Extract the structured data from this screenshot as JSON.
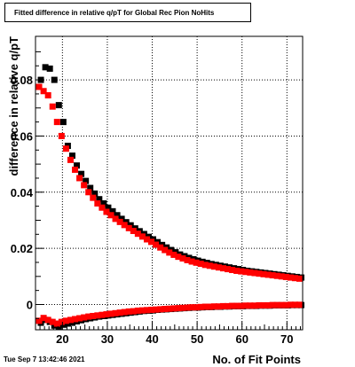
{
  "chart_data": {
    "type": "scatter",
    "title": "Fitted difference in relative q/pT for Global Rec Pion NoHits",
    "xlabel": "No. of Fit Points",
    "ylabel": "difference in relative q/pT",
    "xlim": [
      14,
      73.5
    ],
    "ylim": [
      -0.009,
      0.0955
    ],
    "x_ticks": [
      20,
      30,
      40,
      50,
      60,
      70
    ],
    "y_ticks": [
      0,
      0.02,
      0.04,
      0.06,
      0.08
    ],
    "x_tick_labels": [
      "20",
      "30",
      "40",
      "50",
      "60",
      "70"
    ],
    "y_tick_labels": [
      "0",
      "0.02",
      "0.04",
      "0.06",
      "0.08"
    ],
    "grid": true,
    "series": [
      {
        "color": "#000000",
        "role": "upper",
        "x": [
          15,
          16,
          17,
          18,
          19,
          20,
          21,
          22,
          23,
          24,
          25,
          26,
          27,
          28,
          29,
          30,
          31,
          32,
          33,
          34,
          35,
          36,
          37,
          38,
          39,
          40,
          41,
          42,
          43,
          44,
          45,
          46,
          47,
          48,
          49,
          50,
          51,
          52,
          53,
          54,
          55,
          56,
          57,
          58,
          59,
          60,
          61,
          62,
          63,
          64,
          65,
          66,
          67,
          68,
          69,
          70,
          71,
          72,
          73
        ],
        "y": [
          0.08,
          0.0845,
          0.084,
          0.08,
          0.071,
          0.065,
          0.0565,
          0.053,
          0.0495,
          0.0465,
          0.044,
          0.0415,
          0.0395,
          0.0375,
          0.036,
          0.0345,
          0.0332,
          0.0318,
          0.0305,
          0.0293,
          0.0282,
          0.0271,
          0.0261,
          0.0251,
          0.0241,
          0.0232,
          0.0222,
          0.0212,
          0.0203,
          0.0194,
          0.0186,
          0.0178,
          0.0172,
          0.0166,
          0.0161,
          0.0156,
          0.0152,
          0.0148,
          0.0144,
          0.0141,
          0.0138,
          0.0135,
          0.0132,
          0.0129,
          0.0126,
          0.0123,
          0.012,
          0.0118,
          0.0116,
          0.0114,
          0.0112,
          0.011,
          0.0108,
          0.0106,
          0.0104,
          0.0102,
          0.01,
          0.0098,
          0.0096
        ]
      },
      {
        "color": "#ff0000",
        "role": "upper",
        "x": [
          15,
          16,
          17,
          18,
          19,
          20,
          21,
          22,
          23,
          24,
          25,
          26,
          27,
          28,
          29,
          30,
          31,
          32,
          33,
          34,
          35,
          36,
          37,
          38,
          39,
          40,
          41,
          42,
          43,
          44,
          45,
          46,
          47,
          48,
          49,
          50,
          51,
          52,
          53,
          54,
          55,
          56,
          57,
          58,
          59,
          60,
          61,
          62,
          63,
          64,
          65,
          66,
          67,
          68,
          69,
          70,
          71,
          72,
          73
        ],
        "y": [
          0.0775,
          0.076,
          0.0745,
          0.0705,
          0.065,
          0.06,
          0.0555,
          0.0515,
          0.048,
          0.045,
          0.0425,
          0.04,
          0.038,
          0.036,
          0.0345,
          0.033,
          0.0318,
          0.0305,
          0.0294,
          0.0283,
          0.0272,
          0.0262,
          0.0252,
          0.0242,
          0.0232,
          0.0223,
          0.0213,
          0.0203,
          0.0194,
          0.0185,
          0.0177,
          0.017,
          0.0164,
          0.0158,
          0.0153,
          0.0149,
          0.0145,
          0.0141,
          0.0138,
          0.0135,
          0.0132,
          0.0129,
          0.0126,
          0.0123,
          0.012,
          0.0118,
          0.0116,
          0.0114,
          0.0112,
          0.011,
          0.0108,
          0.0106,
          0.0104,
          0.0102,
          0.01,
          0.0098,
          0.0096,
          0.0094,
          0.0092
        ]
      },
      {
        "color": "#000000",
        "role": "lower",
        "x": [
          15,
          16,
          17,
          18,
          19,
          20,
          21,
          22,
          23,
          24,
          25,
          26,
          27,
          28,
          29,
          30,
          31,
          32,
          33,
          34,
          35,
          36,
          37,
          38,
          39,
          40,
          41,
          42,
          43,
          44,
          45,
          46,
          47,
          48,
          49,
          50,
          51,
          52,
          53,
          54,
          55,
          56,
          57,
          58,
          59,
          60,
          61,
          62,
          63,
          64,
          65,
          66,
          67,
          68,
          69,
          70,
          71,
          72,
          73
        ],
        "y": [
          -0.0065,
          -0.0055,
          -0.0062,
          -0.0075,
          -0.0078,
          -0.0072,
          -0.0068,
          -0.0065,
          -0.006,
          -0.0056,
          -0.0052,
          -0.0049,
          -0.0046,
          -0.0043,
          -0.0041,
          -0.0039,
          -0.0037,
          -0.0035,
          -0.0033,
          -0.0031,
          -0.0029,
          -0.0027,
          -0.0025,
          -0.0023,
          -0.0022,
          -0.0021,
          -0.0019,
          -0.0018,
          -0.0017,
          -0.0016,
          -0.0015,
          -0.0014,
          -0.0013,
          -0.0012,
          -0.0011,
          -0.0011,
          -0.001,
          -0.0009,
          -0.0009,
          -0.0008,
          -0.0008,
          -0.0007,
          -0.0007,
          -0.0006,
          -0.0006,
          -0.0006,
          -0.0005,
          -0.0005,
          -0.0005,
          -0.0004,
          -0.0004,
          -0.0004,
          -0.0003,
          -0.0003,
          -0.0003,
          -0.0003,
          -0.0002,
          -0.0002,
          -0.0002
        ]
      },
      {
        "color": "#ff0000",
        "role": "lower",
        "x": [
          15,
          16,
          17,
          18,
          19,
          20,
          21,
          22,
          23,
          24,
          25,
          26,
          27,
          28,
          29,
          30,
          31,
          32,
          33,
          34,
          35,
          36,
          37,
          38,
          39,
          40,
          41,
          42,
          43,
          44,
          45,
          46,
          47,
          48,
          49,
          50,
          51,
          52,
          53,
          54,
          55,
          56,
          57,
          58,
          59,
          60,
          61,
          62,
          63,
          64,
          65,
          66,
          67,
          68,
          69,
          70,
          71,
          72,
          73
        ],
        "y": [
          -0.0058,
          -0.0048,
          -0.0055,
          -0.0062,
          -0.0068,
          -0.0062,
          -0.0058,
          -0.0055,
          -0.0052,
          -0.0049,
          -0.0046,
          -0.0043,
          -0.0041,
          -0.0039,
          -0.0037,
          -0.0035,
          -0.0033,
          -0.0031,
          -0.0029,
          -0.0027,
          -0.0025,
          -0.0024,
          -0.0022,
          -0.0021,
          -0.002,
          -0.0019,
          -0.0018,
          -0.0017,
          -0.0016,
          -0.0015,
          -0.0014,
          -0.0013,
          -0.0012,
          -0.0011,
          -0.001,
          -0.001,
          -0.0009,
          -0.0008,
          -0.0008,
          -0.0007,
          -0.0007,
          -0.0006,
          -0.0006,
          -0.0005,
          -0.0005,
          -0.0005,
          -0.0004,
          -0.0004,
          -0.0004,
          -0.0003,
          -0.0003,
          -0.0003,
          -0.0002,
          -0.0002,
          -0.0002,
          -0.0002,
          -0.0001,
          -0.0001,
          -0.0001
        ]
      }
    ]
  },
  "footer": {
    "timestamp": "Tue Sep  7 13:42:46 2021"
  }
}
